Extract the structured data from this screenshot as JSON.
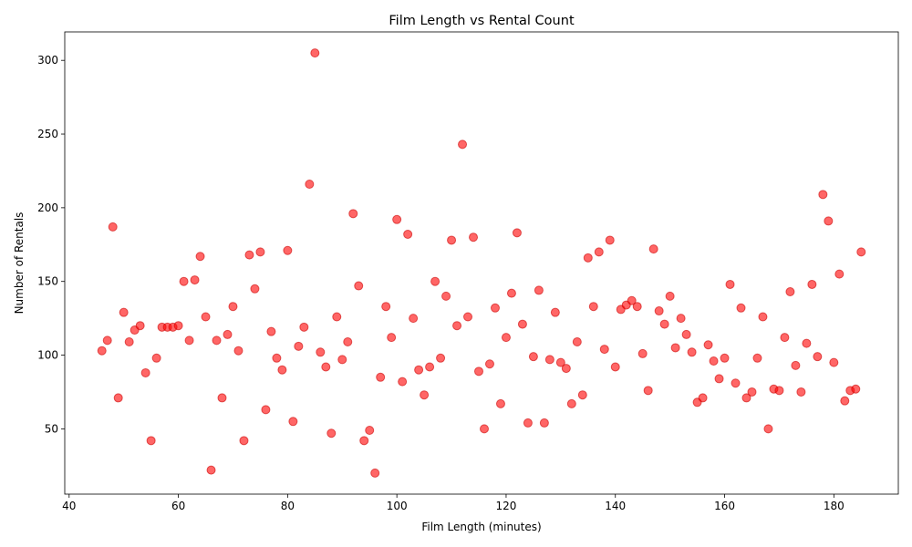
{
  "chart_data": {
    "type": "scatter",
    "title": "Film Length vs Rental Count",
    "xlabel": "Film Length (minutes)",
    "ylabel": "Number of Rentals",
    "xlim": [
      39.2,
      191.8
    ],
    "ylim": [
      5.7,
      319.3
    ],
    "xticks": [
      40,
      60,
      80,
      100,
      120,
      140,
      160,
      180
    ],
    "yticks": [
      50,
      100,
      150,
      200,
      250,
      300
    ],
    "grid": false,
    "legend": "none",
    "marker_color": "#ff0000",
    "marker_edge": "#cc0000",
    "points": [
      [
        46,
        103
      ],
      [
        47,
        110
      ],
      [
        48,
        187
      ],
      [
        49,
        71
      ],
      [
        50,
        129
      ],
      [
        51,
        109
      ],
      [
        52,
        117
      ],
      [
        53,
        120
      ],
      [
        54,
        88
      ],
      [
        55,
        42
      ],
      [
        56,
        98
      ],
      [
        57,
        119
      ],
      [
        58,
        119
      ],
      [
        59,
        119
      ],
      [
        60,
        120
      ],
      [
        61,
        150
      ],
      [
        62,
        110
      ],
      [
        63,
        151
      ],
      [
        64,
        167
      ],
      [
        65,
        126
      ],
      [
        66,
        22
      ],
      [
        67,
        110
      ],
      [
        68,
        71
      ],
      [
        69,
        114
      ],
      [
        70,
        133
      ],
      [
        71,
        103
      ],
      [
        72,
        42
      ],
      [
        73,
        168
      ],
      [
        74,
        145
      ],
      [
        75,
        170
      ],
      [
        76,
        63
      ],
      [
        77,
        116
      ],
      [
        78,
        98
      ],
      [
        79,
        90
      ],
      [
        80,
        171
      ],
      [
        81,
        55
      ],
      [
        82,
        106
      ],
      [
        83,
        119
      ],
      [
        84,
        216
      ],
      [
        85,
        305
      ],
      [
        86,
        102
      ],
      [
        87,
        92
      ],
      [
        88,
        47
      ],
      [
        89,
        126
      ],
      [
        90,
        97
      ],
      [
        91,
        109
      ],
      [
        92,
        196
      ],
      [
        93,
        147
      ],
      [
        94,
        42
      ],
      [
        95,
        49
      ],
      [
        96,
        20
      ],
      [
        97,
        85
      ],
      [
        98,
        133
      ],
      [
        99,
        112
      ],
      [
        100,
        192
      ],
      [
        101,
        82
      ],
      [
        102,
        182
      ],
      [
        103,
        125
      ],
      [
        104,
        90
      ],
      [
        105,
        73
      ],
      [
        106,
        92
      ],
      [
        107,
        150
      ],
      [
        108,
        98
      ],
      [
        109,
        140
      ],
      [
        110,
        178
      ],
      [
        111,
        120
      ],
      [
        112,
        243
      ],
      [
        113,
        126
      ],
      [
        114,
        180
      ],
      [
        115,
        89
      ],
      [
        116,
        50
      ],
      [
        117,
        94
      ],
      [
        118,
        132
      ],
      [
        119,
        67
      ],
      [
        120,
        112
      ],
      [
        121,
        142
      ],
      [
        122,
        183
      ],
      [
        123,
        121
      ],
      [
        124,
        54
      ],
      [
        125,
        99
      ],
      [
        126,
        144
      ],
      [
        127,
        54
      ],
      [
        128,
        97
      ],
      [
        129,
        129
      ],
      [
        130,
        95
      ],
      [
        131,
        91
      ],
      [
        132,
        67
      ],
      [
        133,
        109
      ],
      [
        134,
        73
      ],
      [
        135,
        166
      ],
      [
        136,
        133
      ],
      [
        137,
        170
      ],
      [
        138,
        104
      ],
      [
        139,
        178
      ],
      [
        140,
        92
      ],
      [
        141,
        131
      ],
      [
        142,
        134
      ],
      [
        143,
        137
      ],
      [
        144,
        133
      ],
      [
        145,
        101
      ],
      [
        146,
        76
      ],
      [
        147,
        172
      ],
      [
        148,
        130
      ],
      [
        149,
        121
      ],
      [
        150,
        140
      ],
      [
        151,
        105
      ],
      [
        152,
        125
      ],
      [
        153,
        114
      ],
      [
        154,
        102
      ],
      [
        155,
        68
      ],
      [
        156,
        71
      ],
      [
        157,
        107
      ],
      [
        158,
        96
      ],
      [
        159,
        84
      ],
      [
        160,
        98
      ],
      [
        161,
        148
      ],
      [
        162,
        81
      ],
      [
        163,
        132
      ],
      [
        164,
        71
      ],
      [
        165,
        75
      ],
      [
        166,
        98
      ],
      [
        167,
        126
      ],
      [
        168,
        50
      ],
      [
        169,
        77
      ],
      [
        170,
        76
      ],
      [
        171,
        112
      ],
      [
        172,
        143
      ],
      [
        173,
        93
      ],
      [
        174,
        75
      ],
      [
        175,
        108
      ],
      [
        176,
        148
      ],
      [
        177,
        99
      ],
      [
        178,
        209
      ],
      [
        179,
        191
      ],
      [
        180,
        95
      ],
      [
        181,
        155
      ],
      [
        182,
        69
      ],
      [
        183,
        76
      ],
      [
        184,
        77
      ],
      [
        185,
        170
      ]
    ]
  }
}
